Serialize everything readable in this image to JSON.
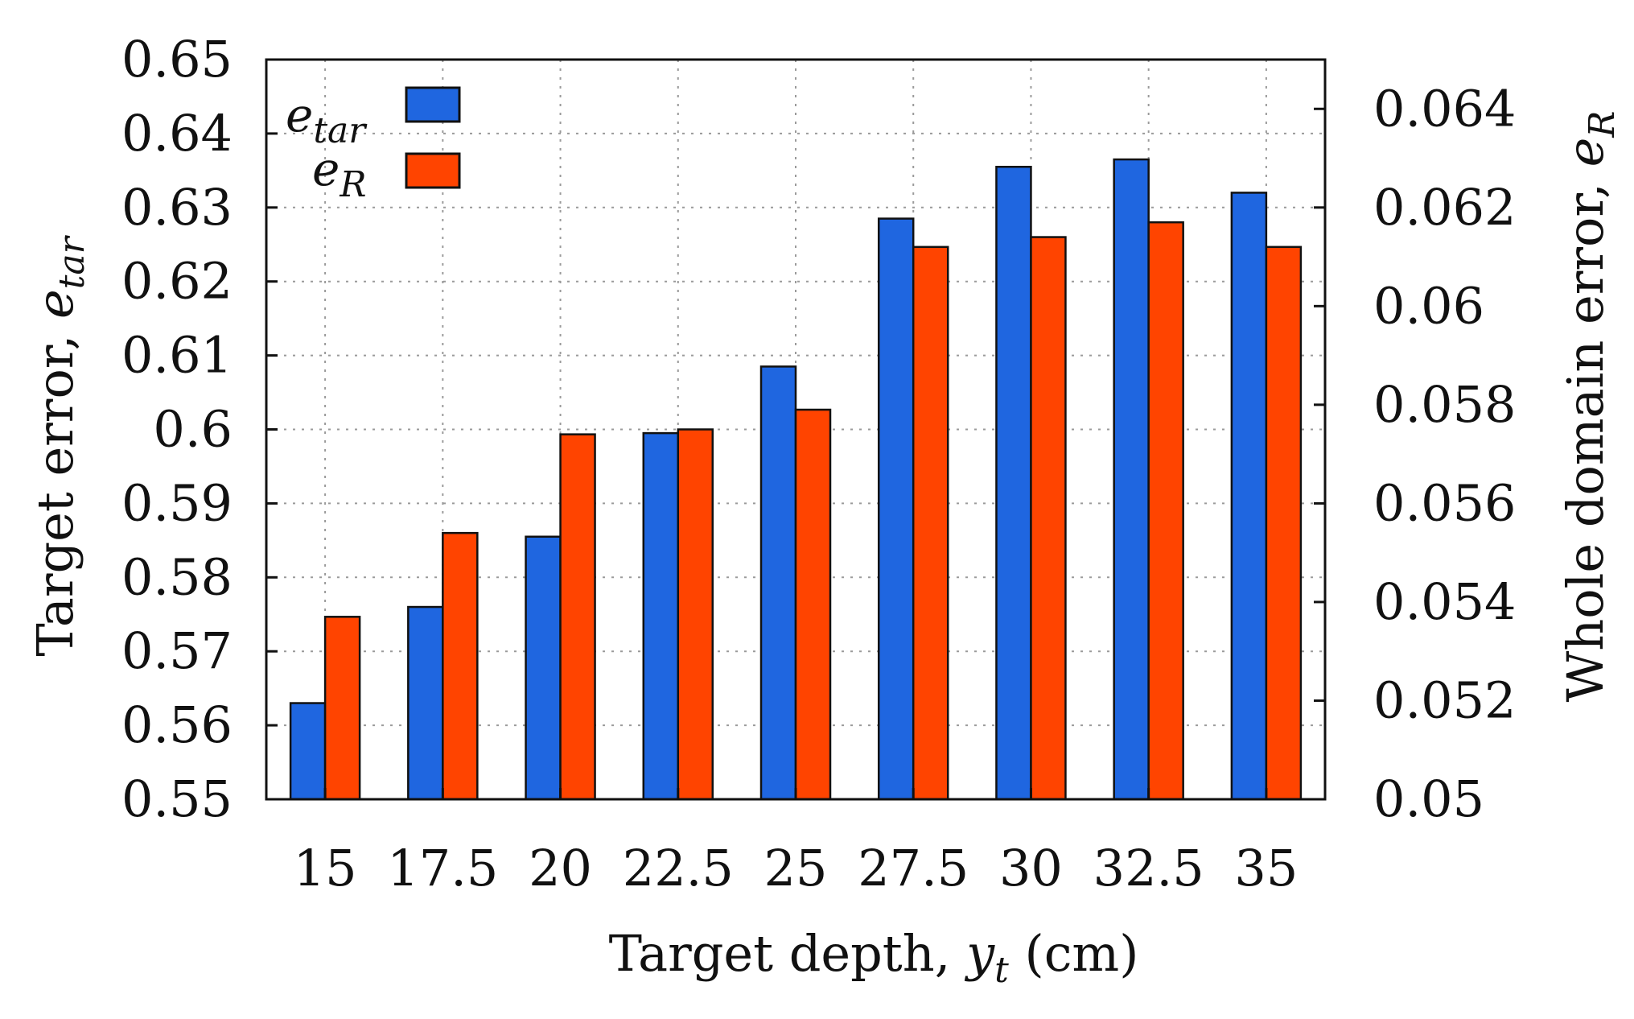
{
  "chart_data": {
    "type": "bar",
    "title": "",
    "categories": [
      "15",
      "17.5",
      "20",
      "22.5",
      "25",
      "27.5",
      "30",
      "32.5",
      "35"
    ],
    "series": [
      {
        "name": "e_tar",
        "legend_main": "e",
        "legend_sub": "tar",
        "axis": "left",
        "color": "#1f66e0",
        "values": [
          0.563,
          0.576,
          0.5855,
          0.5995,
          0.6085,
          0.6285,
          0.6355,
          0.6365,
          0.632
        ]
      },
      {
        "name": "e_R",
        "legend_main": "e",
        "legend_sub": "R",
        "axis": "right",
        "color": "#ff4400",
        "values": [
          0.0537,
          0.0554,
          0.0574,
          0.0575,
          0.0579,
          0.0612,
          0.0614,
          0.0617,
          0.0612
        ]
      }
    ],
    "xlabel": {
      "prefix": "Target depth, ",
      "var": "y",
      "sub": "t",
      "suffix": " (cm)"
    },
    "ylabel_left": {
      "prefix": "Target error, ",
      "var": "e",
      "sub": "tar"
    },
    "ylabel_right": {
      "prefix": "Whole domain error, ",
      "var": "e",
      "sub": "R"
    },
    "ylim_left": [
      0.55,
      0.65
    ],
    "ylim_right": [
      0.05,
      0.065
    ],
    "yticks_left": [
      "0.55",
      "0.56",
      "0.57",
      "0.58",
      "0.59",
      "0.6",
      "0.61",
      "0.62",
      "0.63",
      "0.64",
      "0.65"
    ],
    "yticks_right": [
      "0.05",
      "0.052",
      "0.054",
      "0.056",
      "0.058",
      "0.06",
      "0.062",
      "0.064"
    ],
    "grid": true,
    "legend_position": "top-left"
  }
}
